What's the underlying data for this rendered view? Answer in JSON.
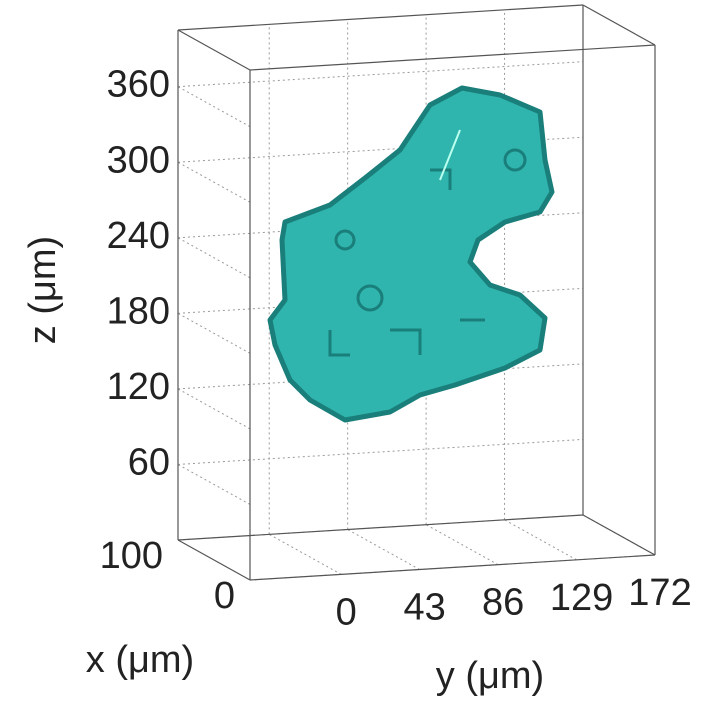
{
  "chart_data": {
    "type": "volume3d",
    "xlabel": "x (μm)",
    "ylabel": "y (μm)",
    "zlabel": "z (μm)",
    "xlim": [
      0,
      100
    ],
    "xticks": [
      0,
      100
    ],
    "ylim": [
      -50,
      172
    ],
    "yticks": [
      0,
      43,
      86,
      129,
      172
    ],
    "zlim": [
      0,
      405
    ],
    "zticks": [
      60,
      120,
      180,
      240,
      300,
      360
    ],
    "grid": true,
    "color": "#2fb5ae"
  }
}
